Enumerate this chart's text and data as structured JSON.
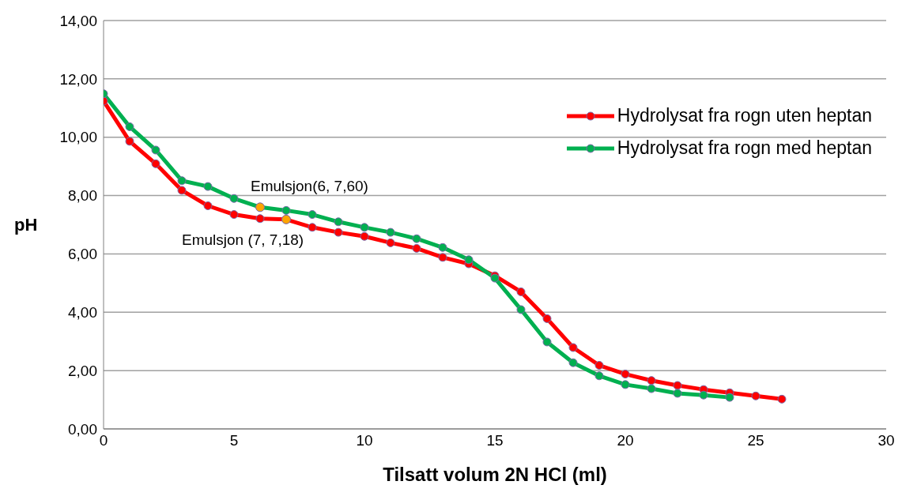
{
  "chart_data": {
    "type": "line",
    "xlabel": "Tilsatt volum 2N HCl (ml)",
    "ylabel": "pH",
    "xlim": [
      0,
      30
    ],
    "xticks": [
      0,
      5,
      10,
      15,
      20,
      25,
      30
    ],
    "ylim": [
      0,
      14
    ],
    "yticks": [
      {
        "value": 0,
        "label": "0,00"
      },
      {
        "value": 2,
        "label": "2,00"
      },
      {
        "value": 4,
        "label": "4,00"
      },
      {
        "value": 6,
        "label": "6,00"
      },
      {
        "value": 8,
        "label": "8,00"
      },
      {
        "value": 10,
        "label": "10,00"
      },
      {
        "value": 12,
        "label": "12,00"
      },
      {
        "value": 14,
        "label": "14,00"
      }
    ],
    "grid": "y",
    "legend": "right",
    "marker": "circle",
    "line_style": "solid",
    "series": [
      {
        "name": "Hydrolysat fra rogn uten heptan",
        "color": "#ff0000",
        "x": [
          0,
          1,
          2,
          3,
          4,
          5,
          6,
          7,
          8,
          9,
          10,
          11,
          12,
          13,
          14,
          15,
          16,
          17,
          18,
          19,
          20,
          21,
          22,
          23,
          24,
          25,
          26
        ],
        "values": [
          11.24,
          9.86,
          9.09,
          8.18,
          7.65,
          7.35,
          7.21,
          7.18,
          6.91,
          6.74,
          6.6,
          6.38,
          6.19,
          5.88,
          5.66,
          5.25,
          4.7,
          3.78,
          2.79,
          2.18,
          1.88,
          1.66,
          1.49,
          1.35,
          1.24,
          1.13,
          1.02
        ]
      },
      {
        "name": "Hydrolysat fra rogn med heptan",
        "color": "#00b050",
        "x": [
          0,
          1,
          2,
          3,
          4,
          5,
          6,
          7,
          8,
          9,
          10,
          11,
          12,
          13,
          14,
          15,
          16,
          17,
          18,
          19,
          20,
          21,
          22,
          23,
          24
        ],
        "values": [
          11.49,
          10.36,
          9.56,
          8.51,
          8.31,
          7.9,
          7.6,
          7.49,
          7.35,
          7.1,
          6.91,
          6.74,
          6.52,
          6.22,
          5.8,
          5.17,
          4.09,
          2.98,
          2.27,
          1.82,
          1.52,
          1.38,
          1.22,
          1.16,
          1.08
        ]
      },
      {
        "type": "scatter",
        "color": "#ffa500",
        "x": [
          6,
          7
        ],
        "values": [
          7.6,
          7.18
        ]
      }
    ],
    "annotations": [
      {
        "text": "Emulsjon(6, 7,60)",
        "x": 6,
        "y": 7.6
      },
      {
        "text": "Emulsjon (7, 7,18)",
        "x": 7,
        "y": 7.18
      }
    ]
  }
}
